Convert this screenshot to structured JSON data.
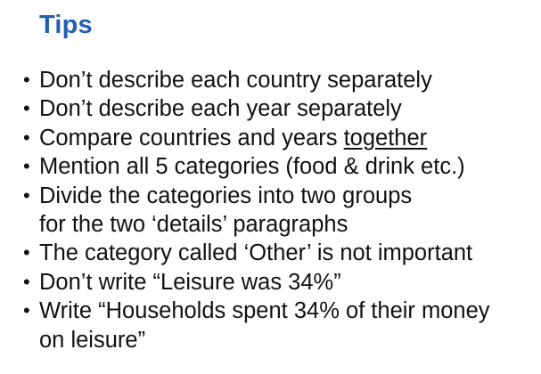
{
  "title": "Tips",
  "bullets": [
    {
      "lines": [
        "Don’t describe each country separately"
      ]
    },
    {
      "lines": [
        "Don’t describe each year separately"
      ]
    },
    {
      "prefix": "Compare countries and years ",
      "emphasis": "together"
    },
    {
      "lines": [
        "Mention all 5 categories (food & drink etc.)"
      ]
    },
    {
      "lines": [
        "Divide the categories into two groups",
        "for the two ‘details’ paragraphs"
      ]
    },
    {
      "lines": [
        "The category called ‘Other’ is not important"
      ]
    },
    {
      "lines": [
        "Don’t write “Leisure was 34%”"
      ]
    },
    {
      "lines": [
        "Write “Households spent 34% of their money",
        "on leisure”"
      ]
    }
  ],
  "colors": {
    "title": "#1f5fb4",
    "text": "#111111",
    "background": "#ffffff"
  },
  "bullet_symbol": "•"
}
